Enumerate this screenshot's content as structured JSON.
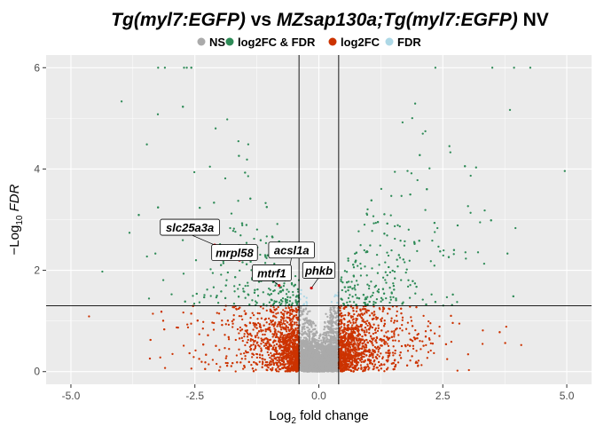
{
  "chart_data": {
    "type": "scatter",
    "title_parts": [
      {
        "text": "Tg(myl7:EGFP)",
        "italic": true
      },
      {
        "text": " vs ",
        "italic": false
      },
      {
        "text": "MZsap130a;Tg(myl7:EGFP)",
        "italic": true
      },
      {
        "text": " NV",
        "italic": false
      }
    ],
    "xlabel": {
      "main": "Log",
      "sub": "2",
      "rest": " fold change"
    },
    "ylabel": {
      "minus": "−",
      "main": "Log",
      "sub": "10",
      "var": "FDR"
    },
    "xlim": [
      -5.5,
      5.5
    ],
    "ylim": [
      -0.25,
      6.25
    ],
    "xticks": [
      -5.0,
      -2.5,
      0.0,
      2.5,
      5.0
    ],
    "xtick_labels": [
      "-5.0",
      "-2.5",
      "0.0",
      "2.5",
      "5.0"
    ],
    "yticks": [
      0,
      2,
      4,
      6
    ],
    "ytick_labels": [
      "0",
      "2",
      "4",
      "6"
    ],
    "grid": true,
    "legend_position": "top",
    "cutoffs": {
      "log2fc": [
        -0.4,
        0.4
      ],
      "neg_log10_fdr": 1.3
    },
    "series": [
      {
        "name": "NS",
        "color": "#aaaaaa",
        "region": "abs(log2FC) < 0.4 and -log10FDR < 1.3",
        "approx_points": 1400
      },
      {
        "name": "log2FC & FDR",
        "color": "#2e8b57",
        "region": "abs(log2FC) > 0.4 and -log10FDR > 1.3",
        "approx_points": 1500
      },
      {
        "name": "log2FC",
        "color": "#cc3300",
        "region": "abs(log2FC) > 0.4 and -log10FDR < 1.3",
        "approx_points": 1100
      },
      {
        "name": "FDR",
        "color": "#add8e6",
        "region": "abs(log2FC) < 0.4 and -log10FDR > 1.3",
        "approx_points": 300
      }
    ],
    "labeled_genes": [
      {
        "name": "slc25a3a",
        "x": -2.1,
        "y": 2.5,
        "label_x": -2.6,
        "label_y": 2.85
      },
      {
        "name": "mrpl58",
        "x": -1.6,
        "y": 2.2,
        "label_x": -1.7,
        "label_y": 2.35
      },
      {
        "name": "acsl1a",
        "x": -0.6,
        "y": 2.0,
        "label_x": -0.55,
        "label_y": 2.4
      },
      {
        "name": "mtrf1",
        "x": -0.8,
        "y": 1.7,
        "label_x": -0.95,
        "label_y": 1.95
      },
      {
        "name": "phkb",
        "x": -0.15,
        "y": 1.65,
        "label_x": 0.0,
        "label_y": 2.0
      }
    ]
  }
}
